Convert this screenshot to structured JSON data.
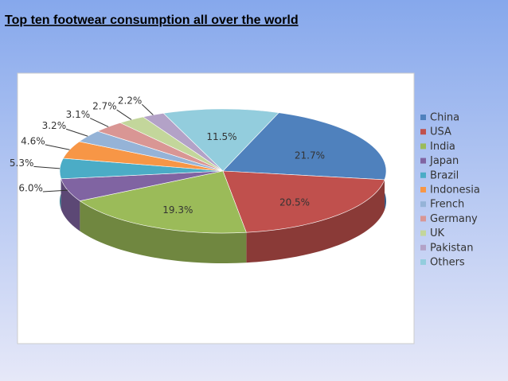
{
  "chart_data": {
    "type": "pie",
    "title": "Top ten footwear consumption all over the world",
    "categories": [
      "China",
      "USA",
      "India",
      "Japan",
      "Brazil",
      "Indonesia",
      "French",
      "Germany",
      "UK",
      "Pakistan",
      "Others"
    ],
    "values": [
      21.7,
      20.5,
      19.3,
      6.0,
      5.3,
      4.6,
      3.2,
      3.1,
      2.7,
      2.2,
      11.5
    ],
    "value_labels": [
      "21.7%",
      "20.5%",
      "19.3%",
      "6.0%",
      "5.3%",
      "4.6%",
      "3.2%",
      "3.1%",
      "2.7%",
      "2.2%",
      "11.5%"
    ],
    "colors": [
      "#4f81bd",
      "#c0504d",
      "#9bbb59",
      "#8064a2",
      "#4bacc6",
      "#f79646",
      "#95b3d7",
      "#d99694",
      "#c3d69b",
      "#b3a2c7",
      "#93cddd"
    ],
    "legend": "right"
  }
}
